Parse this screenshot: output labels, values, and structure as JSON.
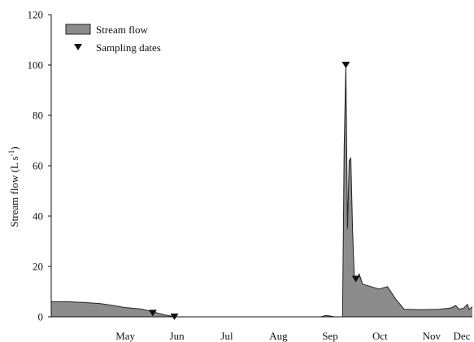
{
  "chart_data": {
    "type": "area",
    "ylabel": "Stream flow (L s",
    "ylabel_sup": "-1",
    "ylabel_close": ")",
    "ylim": [
      0,
      120
    ],
    "y_ticks": [
      0,
      20,
      40,
      60,
      80,
      100,
      120
    ],
    "x_ticks": [
      "May",
      "Jun",
      "Jul",
      "Aug",
      "Sep",
      "Oct",
      "Nov",
      "Dec"
    ],
    "xlim": [
      "2000-04-01",
      "2000-12-10"
    ],
    "grid": false,
    "legend_position": "top-left",
    "colors": {
      "fill": "#8c8c8c",
      "line": "#222222",
      "marker": "#111111"
    },
    "series": [
      {
        "name": "Stream flow",
        "points": [
          [
            "2000-04-01",
            6.0
          ],
          [
            "2000-04-10",
            6.0
          ],
          [
            "2000-04-20",
            5.7
          ],
          [
            "2000-04-30",
            5.3
          ],
          [
            "2000-05-06",
            4.7
          ],
          [
            "2000-05-15",
            3.7
          ],
          [
            "2000-05-25",
            3.1
          ],
          [
            "2000-06-01",
            2.0
          ],
          [
            "2000-06-08",
            0.8
          ],
          [
            "2000-06-14",
            0.0
          ],
          [
            "2000-09-10",
            0.0
          ],
          [
            "2000-09-13",
            0.5
          ],
          [
            "2000-09-16",
            0.3
          ],
          [
            "2000-09-18",
            0.0
          ],
          [
            "2000-09-23",
            0.0
          ],
          [
            "2000-09-24",
            67.0
          ],
          [
            "2000-09-25",
            100.0
          ],
          [
            "2000-09-26",
            35.0
          ],
          [
            "2000-09-27",
            62.0
          ],
          [
            "2000-09-28",
            63.0
          ],
          [
            "2000-09-29",
            35.0
          ],
          [
            "2000-09-30",
            17.0
          ],
          [
            "2000-10-01",
            15.0
          ],
          [
            "2000-10-03",
            17.0
          ],
          [
            "2000-10-05",
            13.0
          ],
          [
            "2000-10-10",
            12.0
          ],
          [
            "2000-10-15",
            11.0
          ],
          [
            "2000-10-20",
            12.0
          ],
          [
            "2000-10-25",
            7.0
          ],
          [
            "2000-10-30",
            3.0
          ],
          [
            "2000-11-10",
            2.8
          ],
          [
            "2000-11-20",
            3.0
          ],
          [
            "2000-11-27",
            3.5
          ],
          [
            "2000-11-30",
            4.5
          ],
          [
            "2000-12-02",
            3.0
          ],
          [
            "2000-12-05",
            3.5
          ],
          [
            "2000-12-07",
            5.0
          ],
          [
            "2000-12-08",
            3.0
          ],
          [
            "2000-12-10",
            4.0
          ]
        ]
      },
      {
        "name": "Sampling dates",
        "points": [
          [
            "2000-06-01",
            1.5
          ],
          [
            "2000-06-14",
            0.0
          ],
          [
            "2000-09-25",
            100.0
          ],
          [
            "2000-10-01",
            15.0
          ]
        ]
      }
    ]
  }
}
